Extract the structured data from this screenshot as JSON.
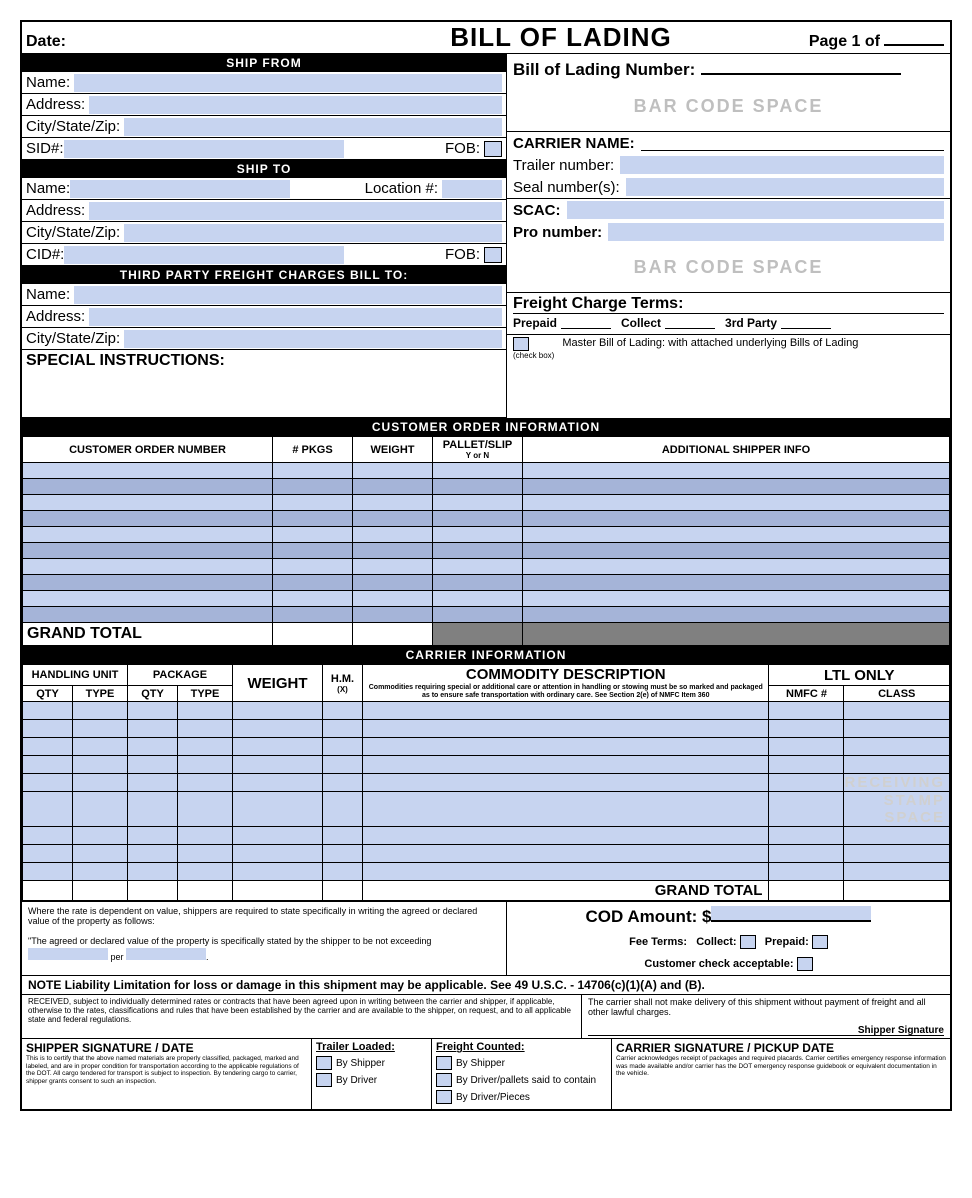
{
  "colors": {
    "input_fill": "#c7d4f0",
    "row_alt": "#a5b4d8",
    "gray": "#808080",
    "watermark": "#d0d0d0",
    "black": "#000000"
  },
  "header": {
    "date_label": "Date:",
    "title": "BILL OF LADING",
    "page_label": "Page 1 of"
  },
  "ship_from": {
    "section": "SHIP FROM",
    "name": "Name:",
    "address": "Address:",
    "csz": "City/State/Zip:",
    "sid": "SID#:",
    "fob": "FOB:"
  },
  "ship_to": {
    "section": "SHIP TO",
    "name": "Name:",
    "location": "Location #:",
    "address": "Address:",
    "csz": "City/State/Zip:",
    "cid": "CID#:",
    "fob": "FOB:"
  },
  "third_party": {
    "section": "THIRD PARTY FREIGHT CHARGES BILL TO:",
    "name": "Name:",
    "address": "Address:",
    "csz": "City/State/Zip:"
  },
  "special_instructions": "SPECIAL INSTRUCTIONS:",
  "right": {
    "bol_number": "Bill of Lading Number:",
    "barcode": "BAR CODE SPACE",
    "carrier_name": "CARRIER NAME:",
    "trailer": "Trailer number:",
    "seal": "Seal number(s):",
    "scac": "SCAC:",
    "pro": "Pro number:",
    "fct_title": "Freight Charge Terms:",
    "prepaid": "Prepaid",
    "collect": "Collect",
    "third": "3rd Party",
    "check_box": "(check box)",
    "master": "Master Bill of Lading: with attached underlying Bills of Lading"
  },
  "customer_order": {
    "section": "CUSTOMER ORDER INFORMATION",
    "cols": [
      "CUSTOMER ORDER NUMBER",
      "# PKGS",
      "WEIGHT",
      "PALLET/SLIP",
      "ADDITIONAL SHIPPER INFO"
    ],
    "pallet_sub": "Y    or    N",
    "num_rows": 10,
    "grand_total": "GRAND TOTAL"
  },
  "carrier_info": {
    "section": "CARRIER INFORMATION",
    "handling_unit": "HANDLING UNIT",
    "package": "PACKAGE",
    "qty": "QTY",
    "type": "TYPE",
    "weight": "WEIGHT",
    "hm": "H.M.",
    "hm_sub": "(X)",
    "commodity": "COMMODITY DESCRIPTION",
    "commodity_note": "Commodities requiring special or additional care or attention in handling or stowing must be so marked and packaged as to ensure safe transportation with ordinary care. See Section 2(e) of NMFC Item 360",
    "ltl": "LTL ONLY",
    "nmfc": "NMFC #",
    "class": "CLASS",
    "num_rows": 9,
    "receiving_stamp": "RECEIVING STAMP SPACE",
    "grand_total": "GRAND TOTAL"
  },
  "declared": {
    "text1": "Where the rate is dependent on value, shippers are required to state specifically in writing the agreed or declared value of the property as follows:",
    "text2": "\"The agreed or declared value of the property is specifically stated by the shipper to be not exceeding",
    "per": "per"
  },
  "cod": {
    "amount": "COD Amount:  $",
    "fee_terms": "Fee Terms:",
    "collect": "Collect:",
    "prepaid": "Prepaid:",
    "cust_check": "Customer check acceptable:"
  },
  "note": "NOTE  Liability Limitation for loss or damage in this shipment may be applicable.  See 49 U.S.C. - 14706(c)(1)(A) and (B).",
  "received": {
    "left": "RECEIVED, subject to individually determined rates or contracts that have been agreed upon in writing between the carrier and shipper, if applicable, otherwise to the rates, classifications and rules that have been established by the carrier and are available to the shipper, on request, and to all applicable state and federal regulations.",
    "right": "The carrier shall not make delivery of this shipment without payment of freight and all other lawful charges.",
    "sig": "Shipper Signature"
  },
  "signatures": {
    "shipper_title": "SHIPPER SIGNATURE / DATE",
    "shipper_text": "This is to certify that the above named materials are properly classified, packaged, marked and labeled, and are in proper condition for transportation according to the applicable regulations of the DOT. All cargo tendered for transport is subject to inspection. By tendering cargo to carrier, shipper grants consent to such an inspection.",
    "trailer_loaded": "Trailer Loaded:",
    "freight_counted": "Freight Counted:",
    "by_shipper": "By Shipper",
    "by_driver": "By Driver",
    "by_driver_pallets": "By Driver/pallets said to contain",
    "by_driver_pieces": "By Driver/Pieces",
    "carrier_title": "CARRIER SIGNATURE / PICKUP DATE",
    "carrier_text": "Carrier acknowledges receipt of packages and required placards. Carrier certifies emergency response information was made available and/or carrier has the DOT emergency response guidebook or equivalent documentation in the vehicle."
  }
}
